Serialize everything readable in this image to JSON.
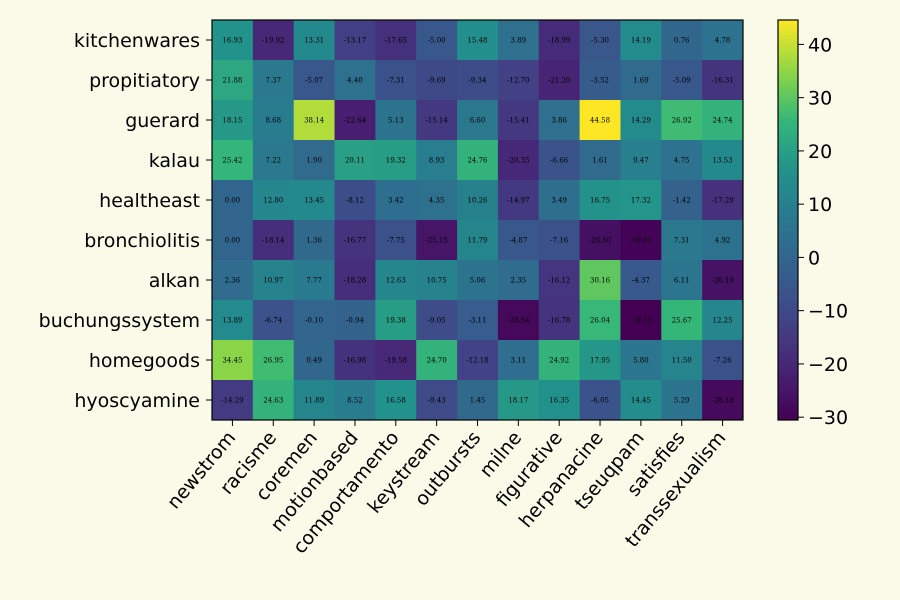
{
  "chart_data": {
    "type": "heatmap",
    "title": "",
    "xlabel": "",
    "ylabel": "",
    "x_categories": [
      "newstrom",
      "racisme",
      "coremen",
      "motionbased",
      "comportamento",
      "keystream",
      "outbursts",
      "milne",
      "figurative",
      "herpanacine",
      "tseuqpam",
      "satisfies",
      "transsexualism"
    ],
    "y_categories": [
      "kitchenwares",
      "propitiatory",
      "guerard",
      "kalau",
      "healtheast",
      "bronchiolitis",
      "alkan",
      "buchungssystem",
      "homegoods",
      "hyoscyamine"
    ],
    "values": [
      [
        16.93,
        -19.92,
        13.31,
        -13.17,
        -17.65,
        -5.0,
        15.48,
        3.89,
        -18.99,
        -5.3,
        14.19,
        0.76,
        4.78
      ],
      [
        21.88,
        7.37,
        -5.07,
        4.4,
        -7.31,
        -9.69,
        -9.34,
        -12.7,
        -21.2,
        -3.52,
        1.69,
        -5.09,
        -16.31
      ],
      [
        18.15,
        8.68,
        38.14,
        -22.64,
        5.13,
        -15.14,
        6.6,
        -15.41,
        3.86,
        44.58,
        14.29,
        26.92,
        24.74
      ],
      [
        25.42,
        7.22,
        1.9,
        20.11,
        19.32,
        8.93,
        24.76,
        -20.35,
        -6.66,
        1.61,
        9.47,
        4.75,
        13.53
      ],
      [
        0.0,
        12.8,
        13.45,
        -8.12,
        3.42,
        4.35,
        10.26,
        -14.97,
        3.49,
        16.75,
        17.32,
        -1.42,
        -17.29
      ],
      [
        0.0,
        -18.14,
        1.36,
        -16.77,
        -7.75,
        -25.15,
        11.79,
        -4.87,
        -7.16,
        -26.5,
        -30.01,
        7.31,
        4.92
      ],
      [
        2.36,
        10.97,
        7.77,
        -18.28,
        12.63,
        10.75,
        5.06,
        2.35,
        -16.12,
        30.16,
        -4.37,
        6.11,
        -26.1
      ],
      [
        13.89,
        -6.74,
        -0.1,
        -0.94,
        19.38,
        -9.05,
        -3.11,
        -28.54,
        -16.78,
        26.04,
        -30.53,
        25.67,
        12.25
      ],
      [
        34.45,
        26.95,
        0.49,
        -16.98,
        -19.58,
        24.7,
        -12.18,
        3.11,
        24.92,
        17.95,
        5.8,
        11.5,
        -7.26
      ],
      [
        -14.29,
        24.63,
        11.89,
        8.52,
        16.58,
        -9.43,
        1.45,
        18.17,
        16.35,
        -6.05,
        14.45,
        5.29,
        -28.18
      ]
    ],
    "vmin": -30.53,
    "vmax": 44.58,
    "colormap": "viridis",
    "colorbar_ticks": [
      -30,
      -20,
      -10,
      0,
      10,
      20,
      30,
      40
    ],
    "grid": false
  }
}
